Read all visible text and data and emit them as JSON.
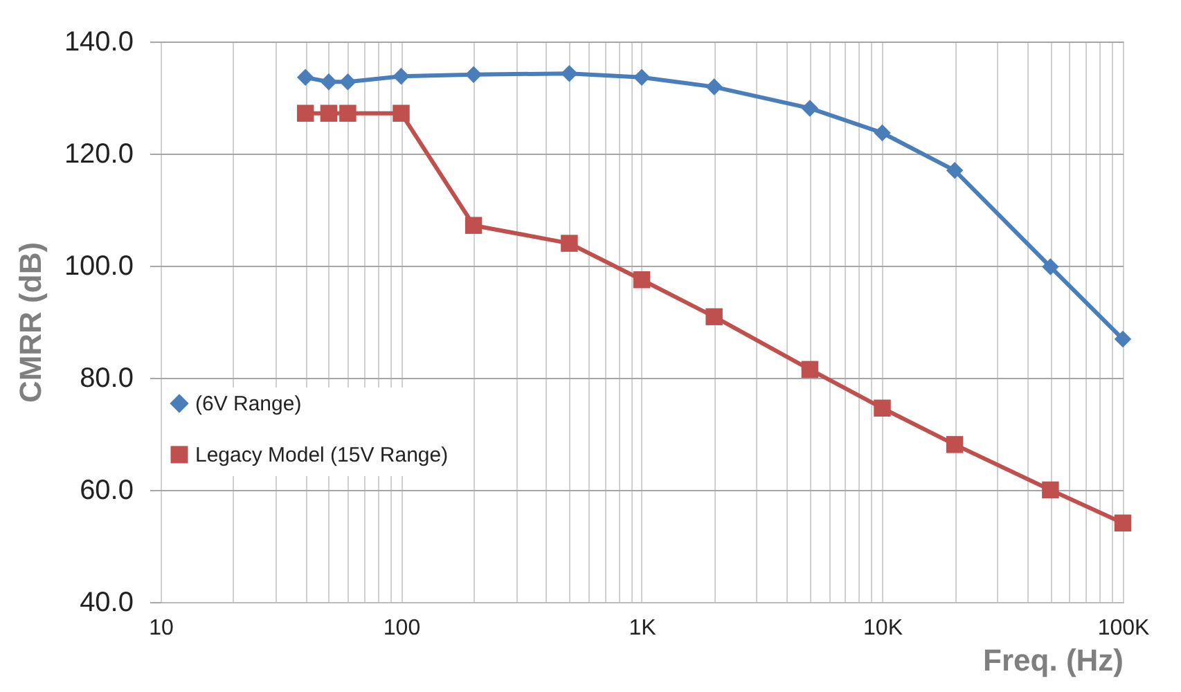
{
  "chart_data": {
    "type": "line",
    "xlabel": "Freq.  (Hz)",
    "ylabel": "CMRR (dB)",
    "x": [
      40,
      50,
      60,
      100,
      200,
      500,
      1000,
      2000,
      5000,
      10000,
      20000,
      50000,
      100000
    ],
    "series": [
      {
        "name": "(6V Range)",
        "color": "#4a7ebb",
        "marker": "diamond",
        "values": [
          133.6,
          132.8,
          132.8,
          133.8,
          134.1,
          134.3,
          133.6,
          131.9,
          128.1,
          123.7,
          117.0,
          99.8,
          86.9
        ]
      },
      {
        "name": "Legacy Model (15V Range)",
        "color": "#c0504d",
        "marker": "square",
        "values": [
          127.2,
          127.2,
          127.2,
          127.2,
          107.2,
          104.0,
          97.5,
          90.9,
          81.5,
          74.6,
          68.1,
          60.0,
          54.1
        ]
      }
    ],
    "log": "x",
    "xlim": [
      10,
      100000
    ],
    "xticks": [
      10,
      100,
      {
        "value": 1000,
        "label": "1K"
      },
      {
        "value": 10000,
        "label": "10K"
      },
      {
        "value": 100000,
        "label": "100K"
      }
    ],
    "ylim": [
      40,
      140
    ],
    "yticks": [
      {
        "value": 40,
        "label": "40.0"
      },
      {
        "value": 60,
        "label": "60.0"
      },
      {
        "value": 80,
        "label": "80.0"
      },
      {
        "value": 100,
        "label": "100.0"
      },
      {
        "value": 120,
        "label": "120.0"
      },
      {
        "value": 140,
        "label": "140.0"
      }
    ],
    "grid": true,
    "legend": "left",
    "line_style": "solid"
  }
}
